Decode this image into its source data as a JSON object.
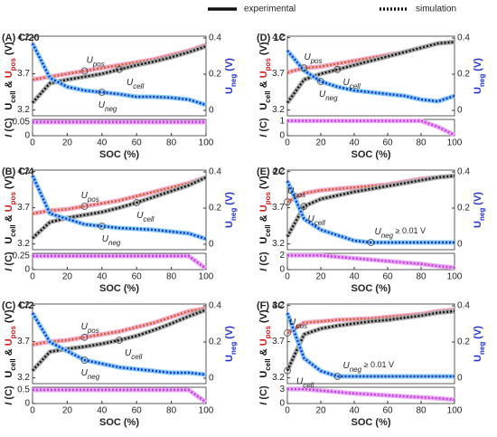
{
  "legend": [
    {
      "name": "experimental",
      "style": "solid"
    },
    {
      "name": "simulation",
      "style": "dotted"
    }
  ],
  "chart_data": [
    {
      "type": "line",
      "title": "(A) C/20",
      "x": [
        0,
        10,
        20,
        30,
        40,
        50,
        60,
        70,
        80,
        90,
        100
      ],
      "xlim": [
        0,
        100
      ],
      "xticks": [
        0,
        20,
        40,
        60,
        80,
        100
      ],
      "xlabel": "SOC (%)",
      "ylim": [
        3.12,
        4.22
      ],
      "yticks": [
        3.2,
        3.7,
        4.2
      ],
      "y2lim": [
        -0.03,
        0.41
      ],
      "y2ticks": [
        0,
        0.2,
        0.4
      ],
      "ylabel": [
        {
          "text": "U",
          "color": "#111"
        },
        {
          "text": "cell",
          "sub": true,
          "color": "#111"
        },
        {
          "text": " & ",
          "color": "#111"
        },
        {
          "text": "U",
          "color": "#d02020"
        },
        {
          "text": "pos",
          "sub": true,
          "color": "#d02020"
        },
        {
          "text": " (V)",
          "color": "#111"
        }
      ],
      "y2label": [
        {
          "text": "U",
          "color": "#2233cc"
        },
        {
          "text": "neg",
          "sub": true,
          "color": "#2233cc"
        },
        {
          "text": " (V)",
          "color": "#2233cc"
        }
      ],
      "series": [
        {
          "name": "U",
          "subscript": "pos",
          "color": "#c8641e",
          "band_color": "#f4a8cf",
          "axis": "y",
          "values": [
            3.62,
            3.66,
            3.7,
            3.74,
            3.78,
            3.82,
            3.86,
            3.9,
            3.96,
            4.02,
            4.1
          ]
        },
        {
          "name": "U",
          "subscript": "cell",
          "color": "#111111",
          "band_color": "#a8a8a8",
          "axis": "y",
          "values": [
            3.3,
            3.57,
            3.62,
            3.66,
            3.7,
            3.76,
            3.82,
            3.87,
            3.93,
            4.0,
            4.08
          ]
        },
        {
          "name": "U",
          "subscript": "neg",
          "color": "#1a2ed8",
          "band_color": "#7ec8f0",
          "axis": "y2",
          "values": [
            0.37,
            0.18,
            0.13,
            0.11,
            0.1,
            0.09,
            0.075,
            0.075,
            0.07,
            0.06,
            0.03
          ]
        }
      ],
      "current": {
        "label": [
          {
            "text": "I",
            "italic": true
          },
          {
            "text": " (C)"
          }
        ],
        "color": "#c040e0",
        "band_color": "#e9a8f5",
        "ylim": [
          0,
          0.06
        ],
        "yticks": [
          0,
          0.05
        ],
        "values": [
          0.05,
          0.05,
          0.05,
          0.05,
          0.05,
          0.05,
          0.05,
          0.05,
          0.05,
          0.05,
          0.05
        ]
      }
    },
    {
      "type": "line",
      "title": "(B) C/4",
      "x": [
        0,
        10,
        20,
        30,
        40,
        50,
        60,
        70,
        80,
        90,
        100
      ],
      "xlim": [
        0,
        100
      ],
      "xticks": [
        0,
        20,
        40,
        60,
        80,
        100
      ],
      "xlabel": "SOC (%)",
      "ylim": [
        3.12,
        4.22
      ],
      "yticks": [
        3.2,
        3.7,
        4.2
      ],
      "y2lim": [
        -0.03,
        0.41
      ],
      "y2ticks": [
        0,
        0.2,
        0.4
      ],
      "ylabel": [
        {
          "text": "U",
          "color": "#111"
        },
        {
          "text": "cell",
          "sub": true,
          "color": "#111"
        },
        {
          "text": " & ",
          "color": "#111"
        },
        {
          "text": "U",
          "color": "#d02020"
        },
        {
          "text": "pos",
          "sub": true,
          "color": "#d02020"
        },
        {
          "text": " (V)",
          "color": "#111"
        }
      ],
      "y2label": [
        {
          "text": "U",
          "color": "#2233cc"
        },
        {
          "text": "neg",
          "sub": true,
          "color": "#2233cc"
        },
        {
          "text": " (V)",
          "color": "#2233cc"
        }
      ],
      "series": [
        {
          "name": "U",
          "subscript": "pos",
          "color": "#c8641e",
          "band_color": "#f4a8cf",
          "axis": "y",
          "values": [
            3.62,
            3.66,
            3.68,
            3.72,
            3.76,
            3.8,
            3.86,
            3.92,
            3.98,
            4.04,
            4.12
          ]
        },
        {
          "name": "U",
          "subscript": "cell",
          "color": "#111111",
          "band_color": "#a8a8a8",
          "axis": "y",
          "values": [
            3.28,
            3.5,
            3.56,
            3.6,
            3.64,
            3.7,
            3.77,
            3.85,
            3.93,
            4.01,
            4.12
          ]
        },
        {
          "name": "U",
          "subscript": "neg",
          "color": "#1a2ed8",
          "band_color": "#7ec8f0",
          "axis": "y2",
          "values": [
            0.38,
            0.17,
            0.14,
            0.11,
            0.1,
            0.09,
            0.085,
            0.08,
            0.07,
            0.06,
            0.03
          ]
        }
      ],
      "current": {
        "label": [
          {
            "text": "I",
            "italic": true
          },
          {
            "text": " (C)"
          }
        ],
        "color": "#c040e0",
        "band_color": "#e9a8f5",
        "ylim": [
          0,
          0.3
        ],
        "yticks": [
          0,
          0.25
        ],
        "values": [
          0.25,
          0.25,
          0.25,
          0.25,
          0.25,
          0.25,
          0.25,
          0.25,
          0.25,
          0.25,
          0.02
        ]
      }
    },
    {
      "type": "line",
      "title": "(C) C/2",
      "x": [
        0,
        10,
        20,
        30,
        40,
        50,
        60,
        70,
        80,
        90,
        100
      ],
      "xlim": [
        0,
        100
      ],
      "xticks": [
        0,
        20,
        40,
        60,
        80,
        100
      ],
      "xlabel": "SOC (%)",
      "ylim": [
        3.12,
        4.22
      ],
      "yticks": [
        3.2,
        3.7,
        4.2
      ],
      "y2lim": [
        -0.03,
        0.41
      ],
      "y2ticks": [
        0,
        0.2,
        0.4
      ],
      "ylabel": [
        {
          "text": "U",
          "color": "#111"
        },
        {
          "text": "cell",
          "sub": true,
          "color": "#111"
        },
        {
          "text": " & ",
          "color": "#111"
        },
        {
          "text": "U",
          "color": "#d02020"
        },
        {
          "text": "pos",
          "sub": true,
          "color": "#d02020"
        },
        {
          "text": " (V)",
          "color": "#111"
        }
      ],
      "y2label": [
        {
          "text": "U",
          "color": "#2233cc"
        },
        {
          "text": "neg",
          "sub": true,
          "color": "#2233cc"
        },
        {
          "text": " (V)",
          "color": "#2233cc"
        }
      ],
      "series": [
        {
          "name": "U",
          "subscript": "pos",
          "color": "#c8641e",
          "band_color": "#f4a8cf",
          "axis": "y",
          "values": [
            3.66,
            3.7,
            3.72,
            3.76,
            3.8,
            3.84,
            3.9,
            3.96,
            4.04,
            4.12,
            4.16
          ]
        },
        {
          "name": "U",
          "subscript": "cell",
          "color": "#111111",
          "band_color": "#a8a8a8",
          "axis": "y",
          "values": [
            3.3,
            3.56,
            3.6,
            3.63,
            3.67,
            3.72,
            3.78,
            3.86,
            3.95,
            4.05,
            4.14
          ]
        },
        {
          "name": "U",
          "subscript": "neg",
          "color": "#1a2ed8",
          "band_color": "#7ec8f0",
          "axis": "y2",
          "values": [
            0.36,
            0.2,
            0.15,
            0.1,
            0.08,
            0.06,
            0.05,
            0.04,
            0.03,
            0.03,
            0.02
          ]
        }
      ],
      "current": {
        "label": [
          {
            "text": "I",
            "italic": true
          },
          {
            "text": " (C)"
          }
        ],
        "color": "#c040e0",
        "band_color": "#e9a8f5",
        "ylim": [
          0,
          0.6
        ],
        "yticks": [
          0,
          0.5
        ],
        "values": [
          0.5,
          0.5,
          0.5,
          0.5,
          0.5,
          0.5,
          0.5,
          0.5,
          0.5,
          0.5,
          0.05
        ]
      }
    },
    {
      "type": "line",
      "title": "(D) 1C",
      "x": [
        0,
        10,
        20,
        30,
        40,
        50,
        60,
        70,
        80,
        90,
        100
      ],
      "xlim": [
        0,
        100
      ],
      "xticks": [
        0,
        20,
        40,
        60,
        80,
        100
      ],
      "xlabel": "SOC (%)",
      "ylim": [
        3.12,
        4.22
      ],
      "yticks": [
        3.2,
        3.7,
        4.2
      ],
      "y2lim": [
        -0.03,
        0.41
      ],
      "y2ticks": [
        0,
        0.2,
        0.4
      ],
      "ylabel": [
        {
          "text": "U",
          "color": "#111"
        },
        {
          "text": "cell",
          "sub": true,
          "color": "#111"
        },
        {
          "text": " & ",
          "color": "#111"
        },
        {
          "text": "U",
          "color": "#d02020"
        },
        {
          "text": "pos",
          "sub": true,
          "color": "#d02020"
        },
        {
          "text": " (V)",
          "color": "#111"
        }
      ],
      "y2label": [
        {
          "text": "U",
          "color": "#2233cc"
        },
        {
          "text": "neg",
          "sub": true,
          "color": "#2233cc"
        },
        {
          "text": " (V)",
          "color": "#2233cc"
        }
      ],
      "series": [
        {
          "name": "U",
          "subscript": "pos",
          "color": "#c8641e",
          "band_color": "#f4a8cf",
          "axis": "y",
          "values": [
            3.72,
            3.78,
            3.8,
            3.84,
            3.88,
            3.92,
            3.96,
            4.0,
            4.06,
            4.12,
            4.14
          ]
        },
        {
          "name": "U",
          "subscript": "cell",
          "color": "#111111",
          "band_color": "#a8a8a8",
          "axis": "y",
          "values": [
            3.3,
            3.62,
            3.7,
            3.76,
            3.82,
            3.88,
            3.94,
            4.0,
            4.06,
            4.12,
            4.14
          ]
        },
        {
          "name": "U",
          "subscript": "neg",
          "color": "#1a2ed8",
          "band_color": "#7ec8f0",
          "axis": "y2",
          "values": [
            0.33,
            0.22,
            0.16,
            0.13,
            0.11,
            0.1,
            0.09,
            0.08,
            0.06,
            0.05,
            0.08
          ]
        }
      ],
      "current": {
        "label": [
          {
            "text": "I",
            "italic": true
          },
          {
            "text": " (C)"
          }
        ],
        "color": "#c040e0",
        "band_color": "#e9a8f5",
        "ylim": [
          0,
          1.1
        ],
        "yticks": [
          0,
          1
        ],
        "values": [
          1,
          1,
          1,
          1,
          1,
          1,
          1,
          1,
          1,
          0.6,
          0.05
        ]
      }
    },
    {
      "type": "line",
      "title": "(E) 2C",
      "x": [
        0,
        10,
        20,
        30,
        40,
        50,
        60,
        70,
        80,
        90,
        100
      ],
      "xlim": [
        0,
        100
      ],
      "xticks": [
        0,
        20,
        40,
        60,
        80,
        100
      ],
      "xlabel": "SOC (%)",
      "ylim": [
        3.12,
        4.22
      ],
      "yticks": [
        3.2,
        3.7,
        4.2
      ],
      "y2lim": [
        -0.03,
        0.41
      ],
      "y2ticks": [
        0,
        0.2,
        0.4
      ],
      "ylabel": [
        {
          "text": "U",
          "color": "#111"
        },
        {
          "text": "cell",
          "sub": true,
          "color": "#111"
        },
        {
          "text": " & ",
          "color": "#111"
        },
        {
          "text": "U",
          "color": "#d02020"
        },
        {
          "text": "pos",
          "sub": true,
          "color": "#d02020"
        },
        {
          "text": " (V)",
          "color": "#111"
        }
      ],
      "y2label": [
        {
          "text": "U",
          "color": "#2233cc"
        },
        {
          "text": "neg",
          "sub": true,
          "color": "#2233cc"
        },
        {
          "text": " (V)",
          "color": "#2233cc"
        }
      ],
      "series": [
        {
          "name": "U",
          "subscript": "pos",
          "color": "#c8641e",
          "band_color": "#f4a8cf",
          "axis": "y",
          "values": [
            3.78,
            3.9,
            3.94,
            3.96,
            3.98,
            4.0,
            4.02,
            4.06,
            4.1,
            4.12,
            4.14
          ]
        },
        {
          "name": "U",
          "subscript": "cell",
          "color": "#111111",
          "band_color": "#a8a8a8",
          "axis": "y",
          "values": [
            3.3,
            3.72,
            3.82,
            3.87,
            3.92,
            3.96,
            4.0,
            4.04,
            4.08,
            4.12,
            4.14
          ]
        },
        {
          "name": "U",
          "subscript": "neg",
          "note": " ≥ 0.01 V",
          "color": "#1a2ed8",
          "band_color": "#7ec8f0",
          "axis": "y2",
          "values": [
            0.35,
            0.14,
            0.08,
            0.05,
            0.02,
            0.01,
            0.01,
            0.01,
            0.01,
            0.01,
            0.01
          ]
        }
      ],
      "current": {
        "label": [
          {
            "text": "I",
            "italic": true
          },
          {
            "text": " (C)"
          }
        ],
        "color": "#c040e0",
        "band_color": "#e9a8f5",
        "ylim": [
          0,
          2.3
        ],
        "yticks": [
          0,
          2
        ],
        "values": [
          2,
          2,
          2,
          1.8,
          1.6,
          1.4,
          1.2,
          1.0,
          0.8,
          0.5,
          0.3
        ]
      }
    },
    {
      "type": "line",
      "title": "(F) 3C",
      "x": [
        0,
        10,
        20,
        30,
        40,
        50,
        60,
        70,
        80,
        90,
        100
      ],
      "xlim": [
        0,
        100
      ],
      "xticks": [
        0,
        20,
        40,
        60,
        80,
        100
      ],
      "xlabel": "SOC (%)",
      "ylim": [
        3.12,
        4.22
      ],
      "yticks": [
        3.2,
        3.7,
        4.2
      ],
      "y2lim": [
        -0.03,
        0.41
      ],
      "y2ticks": [
        0,
        0.2,
        0.4
      ],
      "ylabel": [
        {
          "text": "U",
          "color": "#111"
        },
        {
          "text": "cell",
          "sub": true,
          "color": "#111"
        },
        {
          "text": " & ",
          "color": "#111"
        },
        {
          "text": "U",
          "color": "#d02020"
        },
        {
          "text": "pos",
          "sub": true,
          "color": "#d02020"
        },
        {
          "text": " (V)",
          "color": "#111"
        }
      ],
      "y2label": [
        {
          "text": "U",
          "color": "#2233cc"
        },
        {
          "text": "neg",
          "sub": true,
          "color": "#2233cc"
        },
        {
          "text": " (V)",
          "color": "#2233cc"
        }
      ],
      "series": [
        {
          "name": "U",
          "subscript": "pos",
          "color": "#c8641e",
          "band_color": "#f4a8cf",
          "axis": "y",
          "values": [
            3.82,
            3.96,
            3.98,
            4.0,
            4.01,
            4.02,
            4.04,
            4.06,
            4.08,
            4.12,
            4.14
          ]
        },
        {
          "name": "U",
          "subscript": "cell",
          "color": "#111111",
          "band_color": "#a8a8a8",
          "axis": "y",
          "values": [
            3.3,
            3.8,
            3.88,
            3.92,
            3.95,
            3.98,
            4.0,
            4.03,
            4.06,
            4.1,
            4.12
          ]
        },
        {
          "name": "U",
          "subscript": "neg",
          "note": " ≥ 0.01 V",
          "color": "#1a2ed8",
          "band_color": "#7ec8f0",
          "axis": "y2",
          "values": [
            0.36,
            0.11,
            0.04,
            0.01,
            0.01,
            0.01,
            0.01,
            0.01,
            0.01,
            0.01,
            0.01
          ]
        }
      ],
      "current": {
        "label": [
          {
            "text": "I",
            "italic": true
          },
          {
            "text": " (C)"
          }
        ],
        "color": "#c040e0",
        "band_color": "#e9a8f5",
        "ylim": [
          0,
          3.4
        ],
        "yticks": [
          0,
          3
        ],
        "values": [
          3,
          3,
          2.7,
          2.4,
          2.1,
          1.9,
          1.7,
          1.5,
          1.3,
          1.1,
          0.8
        ]
      }
    }
  ]
}
